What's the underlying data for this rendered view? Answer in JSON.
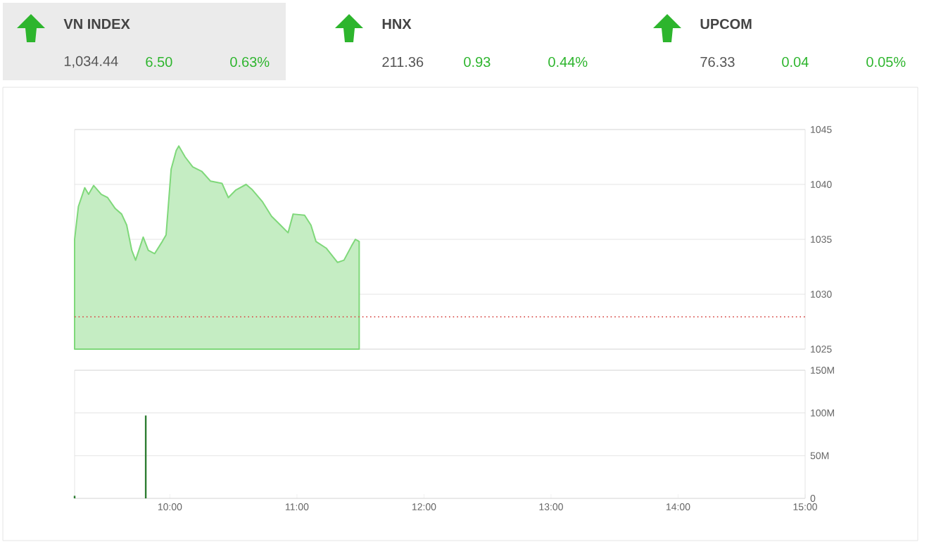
{
  "chart_data": [
    {
      "type": "other",
      "annotations": [
        "VN INDEX",
        "1,034.44",
        "6.50",
        "0.63%",
        "HNX",
        "211.36",
        "0.93",
        "0.44%",
        "UPCOM",
        "76.33",
        "0.04",
        "0.05%"
      ]
    },
    {
      "type": "area",
      "color": "#7fd87a",
      "xlim": [
        9.25,
        15
      ],
      "ylim": [
        1025,
        1045
      ],
      "yticks": [
        1025,
        1030,
        1035,
        1040,
        1045
      ],
      "grid": "y",
      "tick_labels": "y",
      "x": [
        9.25,
        9.28,
        9.33,
        9.36,
        9.4,
        9.46,
        9.51,
        9.57,
        9.62,
        9.66,
        9.7,
        9.73,
        9.79,
        9.83,
        9.88,
        9.94,
        9.97,
        10.01,
        10.05,
        10.07,
        10.12,
        10.18,
        10.25,
        10.32,
        10.41,
        10.46,
        10.52,
        10.6,
        10.65,
        10.73,
        10.8,
        10.87,
        10.93,
        10.97,
        11.06,
        11.11,
        11.15,
        11.23,
        11.32,
        11.37,
        11.43,
        11.46,
        11.49
      ],
      "values": [
        1035.0,
        1038.0,
        1039.7,
        1039.1,
        1039.9,
        1039.1,
        1038.8,
        1037.8,
        1037.3,
        1036.3,
        1034.0,
        1033.1,
        1035.2,
        1034.0,
        1033.7,
        1034.8,
        1035.4,
        1041.4,
        1043.1,
        1043.5,
        1042.5,
        1041.6,
        1041.2,
        1040.3,
        1040.1,
        1038.8,
        1039.5,
        1040.0,
        1039.5,
        1038.4,
        1037.1,
        1036.3,
        1035.6,
        1037.3,
        1037.2,
        1036.3,
        1034.8,
        1034.2,
        1032.9,
        1033.1,
        1034.4,
        1035.0,
        1034.8
      ],
      "ref_lines": [
        {
          "axis": "y",
          "value": 1027.94,
          "color": "#d9534f",
          "line_style": "dotted"
        }
      ]
    },
    {
      "type": "bar",
      "color": "#2e7d32",
      "xlim": [
        9.25,
        15
      ],
      "ylim": [
        0,
        150
      ],
      "grid": "y",
      "yticks": [
        {
          "value": 0,
          "label": "0"
        },
        {
          "value": 50,
          "label": "50M"
        },
        {
          "value": 100,
          "label": "100M"
        },
        {
          "value": 150,
          "label": "150M"
        }
      ],
      "xticks": [
        {
          "value": 10,
          "label": "10:00"
        },
        {
          "value": 11,
          "label": "11:00"
        },
        {
          "value": 12,
          "label": "12:00"
        },
        {
          "value": 13,
          "label": "13:00"
        },
        {
          "value": 14,
          "label": "14:00"
        },
        {
          "value": 15,
          "label": "15:00"
        }
      ],
      "x": [
        9.25,
        9.81
      ],
      "values": [
        3,
        97
      ]
    }
  ]
}
